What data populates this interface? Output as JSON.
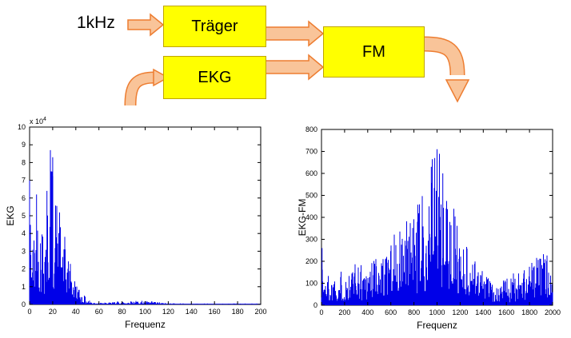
{
  "diagram": {
    "input_label": "1kHz",
    "blocks": [
      {
        "id": "traeger",
        "label": "Träger"
      },
      {
        "id": "ekg",
        "label": "EKG"
      },
      {
        "id": "fm",
        "label": "FM"
      }
    ],
    "colors": {
      "block_fill": "#FFFF00",
      "block_border": "#BFA500",
      "arrow_fill": "#F9C499",
      "arrow_stroke": "#ED7D31"
    }
  },
  "chart_data": [
    {
      "type": "line",
      "id": "ekg-spectrum",
      "title": "",
      "xlabel": "Frequenz",
      "ylabel": "EKG",
      "y_scale": {
        "base": "x 10",
        "exp": "4"
      },
      "xlim": [
        0,
        200
      ],
      "ylim": [
        0,
        10
      ],
      "xticks": [
        0,
        20,
        40,
        60,
        80,
        100,
        120,
        140,
        160,
        180,
        200
      ],
      "yticks": [
        0,
        1,
        2,
        3,
        4,
        5,
        6,
        7,
        8,
        9,
        10
      ],
      "line_color": "#0000E8",
      "legend": null,
      "grid": false,
      "envelope": [
        [
          0,
          7.0
        ],
        [
          2,
          3.5
        ],
        [
          4,
          4.5
        ],
        [
          6,
          5.8
        ],
        [
          8,
          5.2
        ],
        [
          10,
          5.0
        ],
        [
          12,
          5.5
        ],
        [
          14,
          6.0
        ],
        [
          16,
          6.5
        ],
        [
          18,
          8.7
        ],
        [
          20,
          8.0
        ],
        [
          22,
          6.8
        ],
        [
          24,
          6.0
        ],
        [
          26,
          5.2
        ],
        [
          28,
          4.6
        ],
        [
          30,
          4.0
        ],
        [
          33,
          3.0
        ],
        [
          36,
          2.2
        ],
        [
          40,
          1.4
        ],
        [
          44,
          0.8
        ],
        [
          48,
          0.45
        ],
        [
          52,
          0.25
        ],
        [
          56,
          0.15
        ],
        [
          60,
          0.1
        ],
        [
          65,
          0.1
        ],
        [
          70,
          0.12
        ],
        [
          75,
          0.18
        ],
        [
          80,
          0.2
        ],
        [
          85,
          0.18
        ],
        [
          90,
          0.2
        ],
        [
          95,
          0.22
        ],
        [
          100,
          0.2
        ],
        [
          105,
          0.18
        ],
        [
          110,
          0.15
        ],
        [
          115,
          0.1
        ],
        [
          120,
          0.08
        ],
        [
          130,
          0.06
        ],
        [
          140,
          0.05
        ],
        [
          160,
          0.05
        ],
        [
          180,
          0.05
        ],
        [
          200,
          0.05
        ]
      ],
      "peaks": [
        [
          0,
          7.0
        ],
        [
          6,
          6.2
        ],
        [
          15,
          6.4
        ],
        [
          18,
          8.7
        ],
        [
          20,
          8.3
        ]
      ]
    },
    {
      "type": "line",
      "id": "ekg-fm-spectrum",
      "title": "",
      "xlabel": "Frequenz",
      "ylabel": "EKG-FM",
      "y_scale": null,
      "xlim": [
        0,
        2000
      ],
      "ylim": [
        0,
        800
      ],
      "xticks": [
        0,
        200,
        400,
        600,
        800,
        1000,
        1200,
        1400,
        1600,
        1800,
        2000
      ],
      "yticks": [
        0,
        100,
        200,
        300,
        400,
        500,
        600,
        700,
        800
      ],
      "line_color": "#0000E8",
      "legend": null,
      "grid": false,
      "envelope": [
        [
          0,
          250
        ],
        [
          20,
          180
        ],
        [
          50,
          150
        ],
        [
          100,
          150
        ],
        [
          150,
          160
        ],
        [
          200,
          170
        ],
        [
          250,
          180
        ],
        [
          300,
          200
        ],
        [
          350,
          210
        ],
        [
          400,
          220
        ],
        [
          450,
          240
        ],
        [
          500,
          260
        ],
        [
          550,
          280
        ],
        [
          600,
          310
        ],
        [
          650,
          340
        ],
        [
          700,
          380
        ],
        [
          750,
          400
        ],
        [
          800,
          430
        ],
        [
          850,
          480
        ],
        [
          900,
          560
        ],
        [
          950,
          660
        ],
        [
          1000,
          710
        ],
        [
          1030,
          680
        ],
        [
          1060,
          620
        ],
        [
          1100,
          520
        ],
        [
          1150,
          440
        ],
        [
          1200,
          360
        ],
        [
          1250,
          300
        ],
        [
          1300,
          240
        ],
        [
          1350,
          200
        ],
        [
          1400,
          160
        ],
        [
          1450,
          120
        ],
        [
          1500,
          100
        ],
        [
          1550,
          110
        ],
        [
          1600,
          125
        ],
        [
          1650,
          140
        ],
        [
          1700,
          160
        ],
        [
          1750,
          180
        ],
        [
          1800,
          205
        ],
        [
          1850,
          225
        ],
        [
          1900,
          240
        ],
        [
          1950,
          250
        ],
        [
          2000,
          255
        ]
      ],
      "peaks": [
        [
          5,
          260
        ],
        [
          950,
          630
        ],
        [
          980,
          670
        ],
        [
          1000,
          710
        ],
        [
          1020,
          660
        ],
        [
          1050,
          600
        ]
      ]
    }
  ]
}
